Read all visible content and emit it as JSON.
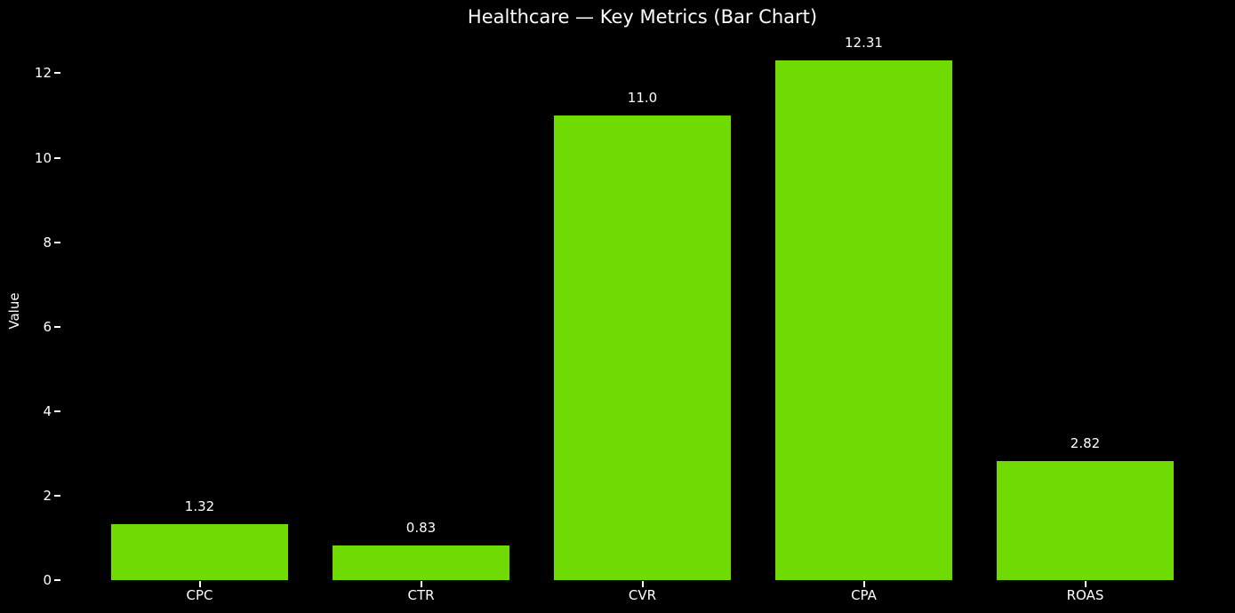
{
  "chart_data": {
    "type": "bar",
    "title": "Healthcare — Key Metrics (Bar Chart)",
    "ylabel": "Value",
    "xlabel": "",
    "categories": [
      "CPC",
      "CTR",
      "CVR",
      "CPA",
      "ROAS"
    ],
    "values": [
      1.32,
      0.83,
      11.0,
      12.31,
      2.82
    ],
    "value_labels": [
      "1.32",
      "0.83",
      "11.0",
      "12.31",
      "2.82"
    ],
    "yticks": [
      0,
      2,
      4,
      6,
      8,
      10,
      12
    ],
    "ylim": [
      0,
      12.93
    ],
    "grid": false,
    "legend_position": "none",
    "bar_color": "#70db03",
    "background_color": "#000000",
    "text_color": "#ffffff"
  }
}
